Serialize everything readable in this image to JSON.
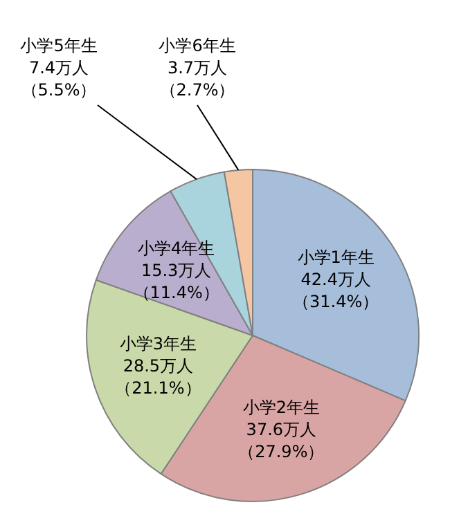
{
  "chart_data": {
    "type": "pie",
    "categories": [
      "小学1年生",
      "小学2年生",
      "小学3年生",
      "小学4年生",
      "小学5年生",
      "小学6年生"
    ],
    "values": [
      42.4,
      37.6,
      28.5,
      15.3,
      7.4,
      3.7
    ],
    "value_labels": [
      "42.4万人（31.4%）",
      "37.6万人（27.9%）",
      "28.5万人（21.1%）",
      "15.3万人（11.4%）",
      "7.4万人（5.5%）",
      "3.7万人（2.7%）"
    ],
    "colors": [
      "#a7bedb",
      "#d9a5a4",
      "#c9d9a9",
      "#b9aece",
      "#a9d4de",
      "#f4c6a2"
    ],
    "legend": false
  }
}
